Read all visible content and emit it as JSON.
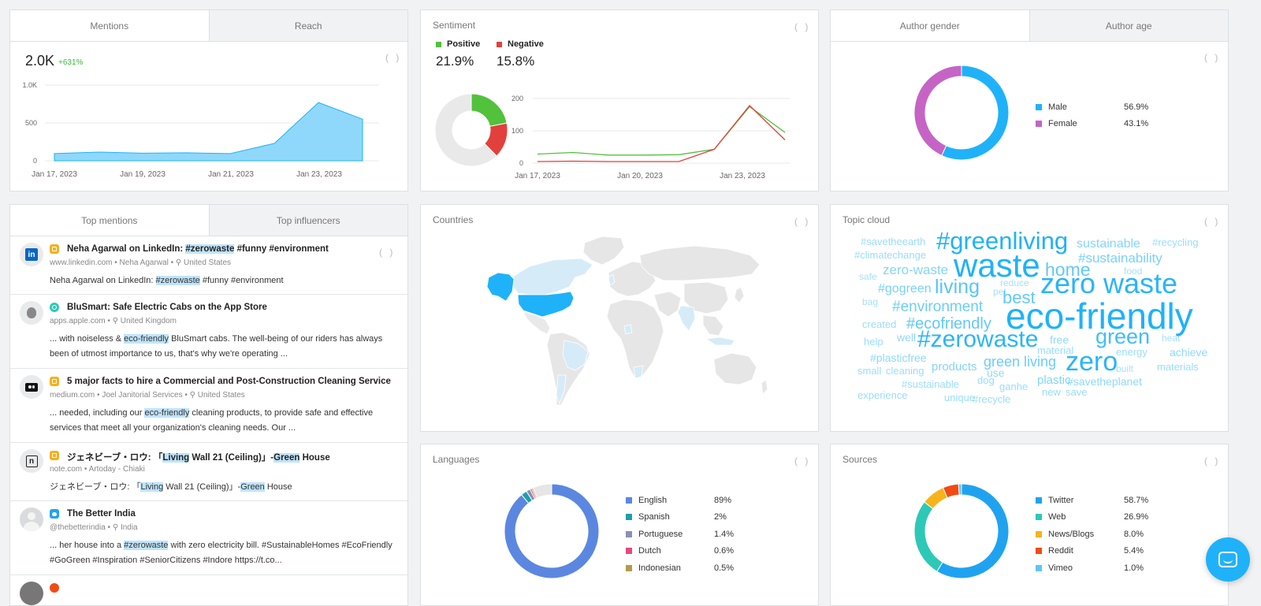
{
  "mentions_card": {
    "tabs": [
      "Mentions",
      "Reach"
    ],
    "value": "2.0K",
    "change": "+631%",
    "y_ticks": [
      "1.0K",
      "500",
      "0"
    ],
    "x_ticks": [
      "Jan 17, 2023",
      "Jan 19, 2023",
      "Jan 21, 2023",
      "Jan 23, 2023"
    ]
  },
  "sentiment_card": {
    "title": "Sentiment",
    "positive_label": "Positive",
    "negative_label": "Negative",
    "positive_value": "21.9%",
    "negative_value": "15.8%",
    "y_ticks": [
      "200",
      "100",
      "0"
    ],
    "x_ticks": [
      "Jan 17, 2023",
      "Jan 20, 2023",
      "Jan 23, 2023"
    ]
  },
  "gender_card": {
    "tabs": [
      "Author gender",
      "Author age"
    ],
    "items": [
      {
        "label": "Male",
        "value": "56.9%"
      },
      {
        "label": "Female",
        "value": "43.1%"
      }
    ]
  },
  "top_mentions_card": {
    "tabs": [
      "Top mentions",
      "Top influencers"
    ],
    "items": [
      {
        "title_parts": [
          "Neha Agarwal on LinkedIn: ",
          "#zerowaste",
          " #funny #environment"
        ],
        "domain": "www.linkedin.com",
        "author": "Neha Agarwal",
        "location": "United States",
        "body_parts": [
          "Neha Agarwal on LinkedIn: ",
          "#zerowaste",
          " #funny #environment"
        ]
      },
      {
        "title_parts": [
          "BluSmart: Safe Electric Cabs on the App Store"
        ],
        "domain": "apps.apple.com",
        "author": "",
        "location": "United Kingdom",
        "body_parts": [
          "... with noiseless & ",
          "eco-friendly",
          " BluSmart cabs. The well-being of our riders has always been of utmost importance to us, that's why we're operating ..."
        ]
      },
      {
        "title_parts": [
          "5 major facts to hire a Commercial and Post-Construction Cleaning Service"
        ],
        "domain": "medium.com",
        "author": "Joel Janitorial Services",
        "location": "United States",
        "body_parts": [
          "... needed, including our ",
          "eco-friendly",
          " cleaning products, to provide safe and effective services that meet all your organization's cleaning needs. Our ..."
        ]
      },
      {
        "title_parts": [
          "ジェネビーブ・ロウ: 「",
          "Living",
          " Wall 21 (Ceiling)」-",
          "Green",
          " House"
        ],
        "domain": "note.com",
        "author": "Artoday - Chiaki",
        "location": "",
        "body_parts": [
          "ジェネビーブ・ロウ: 「",
          "Living",
          " Wall 21 (Ceiling)」-",
          "Green",
          " House"
        ]
      },
      {
        "title_parts": [
          "The Better India"
        ],
        "domain": "@thebetterindia",
        "author": "",
        "location": "India",
        "body_parts": [
          "... her house into a ",
          "#zerowaste",
          " with zero electricity bill. #SustainableHomes #EcoFriendly #GoGreen #Inspiration #SeniorCitizens #Indore https://t.co..."
        ]
      }
    ]
  },
  "countries_card": {
    "title": "Countries"
  },
  "topic_cloud_card": {
    "title": "Topic cloud"
  },
  "languages_card": {
    "title": "Languages",
    "items": [
      {
        "label": "English",
        "value": "89%"
      },
      {
        "label": "Spanish",
        "value": "2%"
      },
      {
        "label": "Portuguese",
        "value": "1.4%"
      },
      {
        "label": "Dutch",
        "value": "0.6%"
      },
      {
        "label": "Indonesian",
        "value": "0.5%"
      }
    ]
  },
  "sources_card": {
    "title": "Sources",
    "items": [
      {
        "label": "Twitter",
        "value": "58.7%"
      },
      {
        "label": "Web",
        "value": "26.9%"
      },
      {
        "label": "News/Blogs",
        "value": "8.0%"
      },
      {
        "label": "Reddit",
        "value": "5.4%"
      },
      {
        "label": "Vimeo",
        "value": "1.0%"
      }
    ]
  },
  "colors": {
    "accent": "#1fb2f9",
    "positive": "#52c13c",
    "negative": "#e2403c",
    "male": "#1fb2f9",
    "female": "#c564c5",
    "mentions_fill": "#8fd8fb",
    "english": "#5b87e0",
    "spanish": "#1e9ea8",
    "portuguese": "#8a8fb5",
    "dutch": "#e4497b",
    "indonesian": "#b39b4c",
    "twitter": "#1fa3f0",
    "web": "#2ec8b7",
    "news": "#f7b31a",
    "reddit": "#f04b14",
    "vimeo": "#5fc6f5"
  },
  "chart_data": [
    {
      "type": "area",
      "title": "",
      "x": [
        "Jan 17, 2023",
        "Jan 18, 2023",
        "Jan 19, 2023",
        "Jan 20, 2023",
        "Jan 21, 2023",
        "Jan 22, 2023",
        "Jan 23, 2023",
        "Jan 24, 2023"
      ],
      "series": [
        {
          "values": [
            95,
            115,
            100,
            105,
            95,
            230,
            770,
            550
          ]
        }
      ],
      "ylim": [
        0,
        1000
      ],
      "grid": true
    },
    {
      "type": "line",
      "title": "Sentiment",
      "x": [
        "Jan 17, 2023",
        "Jan 18, 2023",
        "Jan 19, 2023",
        "Jan 20, 2023",
        "Jan 21, 2023",
        "Jan 22, 2023",
        "Jan 23, 2023",
        "Jan 24, 2023"
      ],
      "series": [
        {
          "name": "Positive",
          "values": [
            28,
            33,
            25,
            25,
            26,
            43,
            175,
            95
          ]
        },
        {
          "name": "Negative",
          "values": [
            5,
            6,
            5,
            5,
            5,
            43,
            178,
            72
          ]
        }
      ],
      "ylim": [
        0,
        200
      ],
      "grid": true
    },
    {
      "type": "pie",
      "title": "Sentiment",
      "labels": [
        "Positive",
        "Negative",
        "Neutral"
      ],
      "values": [
        21.9,
        15.8,
        62.3
      ]
    },
    {
      "type": "pie",
      "labels": [
        "Male",
        "Female"
      ],
      "values": [
        56.9,
        43.1
      ]
    },
    {
      "type": "pie",
      "labels": [
        "English",
        "Spanish",
        "Portuguese",
        "Dutch",
        "Indonesian"
      ],
      "values": [
        89,
        2,
        1.4,
        0.6,
        0.5
      ]
    },
    {
      "type": "pie",
      "labels": [
        "Twitter",
        "Web",
        "News/Blogs",
        "Reddit",
        "Vimeo"
      ],
      "values": [
        58.7,
        26.9,
        8.0,
        5.4,
        1.0
      ]
    }
  ],
  "topic_cloud": [
    {
      "text": "#savetheearth",
      "weight": 1
    },
    {
      "text": "#greenliving",
      "weight": 4
    },
    {
      "text": "sustainable",
      "weight": 2
    },
    {
      "text": "#recycling",
      "weight": 1
    },
    {
      "text": "#climatechange",
      "weight": 1
    },
    {
      "text": "waste",
      "weight": 5
    },
    {
      "text": "#sustainability",
      "weight": 2
    },
    {
      "text": "zero-waste",
      "weight": 2
    },
    {
      "text": "home",
      "weight": 3
    },
    {
      "text": "food",
      "weight": 1
    },
    {
      "text": "safe",
      "weight": 1
    },
    {
      "text": "#gogreen",
      "weight": 2
    },
    {
      "text": "living",
      "weight": 3
    },
    {
      "text": "pet",
      "weight": 1
    },
    {
      "text": "reduce",
      "weight": 1
    },
    {
      "text": "zero waste",
      "weight": 5
    },
    {
      "text": "bag",
      "weight": 1
    },
    {
      "text": "best",
      "weight": 3
    },
    {
      "text": "#environment",
      "weight": 2
    },
    {
      "text": "eco-friendly",
      "weight": 6
    },
    {
      "text": "created",
      "weight": 1
    },
    {
      "text": "#ecofriendly",
      "weight": 2
    },
    {
      "text": "help",
      "weight": 1
    },
    {
      "text": "well",
      "weight": 1
    },
    {
      "text": "#zerowaste",
      "weight": 4
    },
    {
      "text": "free",
      "weight": 1
    },
    {
      "text": "green",
      "weight": 3
    },
    {
      "text": "heat",
      "weight": 1
    },
    {
      "text": "material",
      "weight": 1
    },
    {
      "text": "energy",
      "weight": 1
    },
    {
      "text": "achieve",
      "weight": 1
    },
    {
      "text": "#plasticfree",
      "weight": 1
    },
    {
      "text": "green living",
      "weight": 2
    },
    {
      "text": "zero",
      "weight": 4
    },
    {
      "text": "small",
      "weight": 1
    },
    {
      "text": "cleaning",
      "weight": 1
    },
    {
      "text": "products",
      "weight": 2
    },
    {
      "text": "use",
      "weight": 1
    },
    {
      "text": "built",
      "weight": 1
    },
    {
      "text": "materials",
      "weight": 1
    },
    {
      "text": "#sustainable",
      "weight": 1
    },
    {
      "text": "dog",
      "weight": 1
    },
    {
      "text": "plastic",
      "weight": 2
    },
    {
      "text": "#savetheplanet",
      "weight": 1
    },
    {
      "text": "ganhe",
      "weight": 1
    },
    {
      "text": "experience",
      "weight": 1
    },
    {
      "text": "new",
      "weight": 1
    },
    {
      "text": "save",
      "weight": 1
    },
    {
      "text": "unique",
      "weight": 1
    },
    {
      "text": "#recycle",
      "weight": 1
    }
  ]
}
